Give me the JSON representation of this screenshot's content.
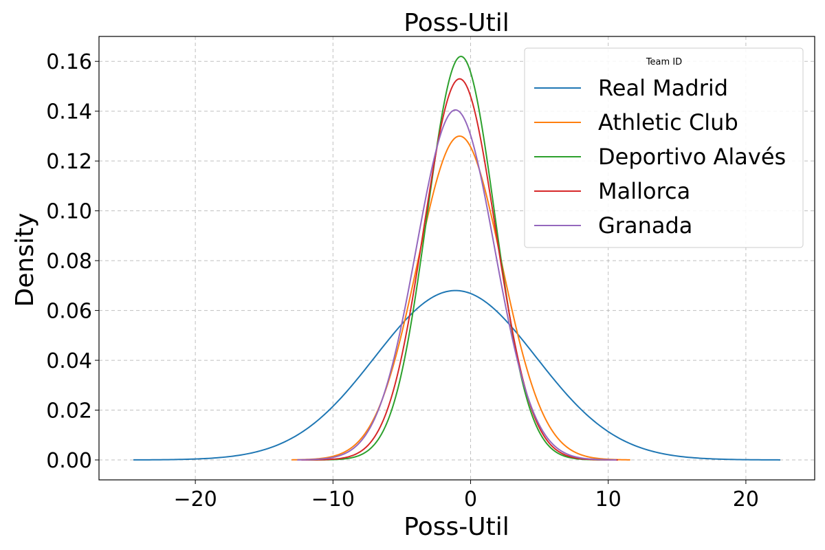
{
  "chart_data": {
    "type": "line",
    "title": "Poss-Util",
    "xlabel": "Poss-Util",
    "ylabel": "Density",
    "xlim": [
      -27,
      25
    ],
    "ylim": [
      -0.008,
      0.17
    ],
    "xticks": [
      -20,
      -10,
      0,
      10,
      20
    ],
    "xtick_labels": [
      "−20",
      "−10",
      "0",
      "10",
      "20"
    ],
    "yticks": [
      0.0,
      0.02,
      0.04,
      0.06,
      0.08,
      0.1,
      0.12,
      0.14,
      0.16
    ],
    "ytick_labels": [
      "0.00",
      "0.02",
      "0.04",
      "0.06",
      "0.08",
      "0.10",
      "0.12",
      "0.14",
      "0.16"
    ],
    "grid": true,
    "legend": {
      "title": "Team ID",
      "placement": "top-right"
    },
    "series": [
      {
        "name": "Real Madrid",
        "color": "#1f77b4",
        "mean": -1.1,
        "peak": 0.068,
        "x_min": -24.5,
        "x_max": 22.5
      },
      {
        "name": "Athletic Club",
        "color": "#ff7f0e",
        "mean": -0.8,
        "peak": 0.13,
        "x_min": -13.0,
        "x_max": 11.6
      },
      {
        "name": "Deportivo Alavés",
        "color": "#2ca02c",
        "mean": -0.7,
        "peak": 0.162,
        "x_min": -12.0,
        "x_max": 10.5
      },
      {
        "name": "Mallorca",
        "color": "#d62728",
        "mean": -0.8,
        "peak": 0.153,
        "x_min": -12.3,
        "x_max": 10.7
      },
      {
        "name": "Granada",
        "color": "#9467bd",
        "mean": -1.1,
        "peak": 0.1405,
        "x_min": -12.6,
        "x_max": 10.6
      }
    ]
  }
}
